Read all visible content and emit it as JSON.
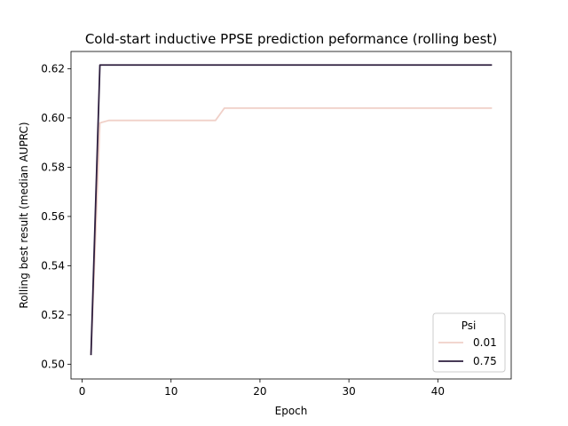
{
  "chart_data": {
    "type": "line",
    "title": "Cold-start inductive PPSE prediction peformance (rolling best)",
    "xlabel": "Epoch",
    "ylabel": "Rolling best result (median AUPRC)",
    "xlim": [
      -1.25,
      48.25
    ],
    "ylim": [
      0.494,
      0.627
    ],
    "xticks": [
      0,
      10,
      20,
      30,
      40
    ],
    "yticks": [
      0.5,
      0.52,
      0.54,
      0.56,
      0.58,
      0.6,
      0.62
    ],
    "ytick_labels": [
      "0.50",
      "0.52",
      "0.54",
      "0.56",
      "0.58",
      "0.60",
      "0.62"
    ],
    "grid": false,
    "legend": {
      "title": "Psi",
      "position": "lower right",
      "entries": [
        "0.01",
        "0.75"
      ]
    },
    "series": [
      {
        "name": "0.01",
        "color": "#f0d0c8",
        "x": [
          1,
          2,
          3,
          15,
          16,
          46
        ],
        "y": [
          0.504,
          0.598,
          0.599,
          0.599,
          0.604,
          0.604
        ]
      },
      {
        "name": "0.75",
        "color": "#2d1e3e",
        "x": [
          1,
          2,
          46
        ],
        "y": [
          0.504,
          0.6215,
          0.6215
        ]
      }
    ]
  }
}
